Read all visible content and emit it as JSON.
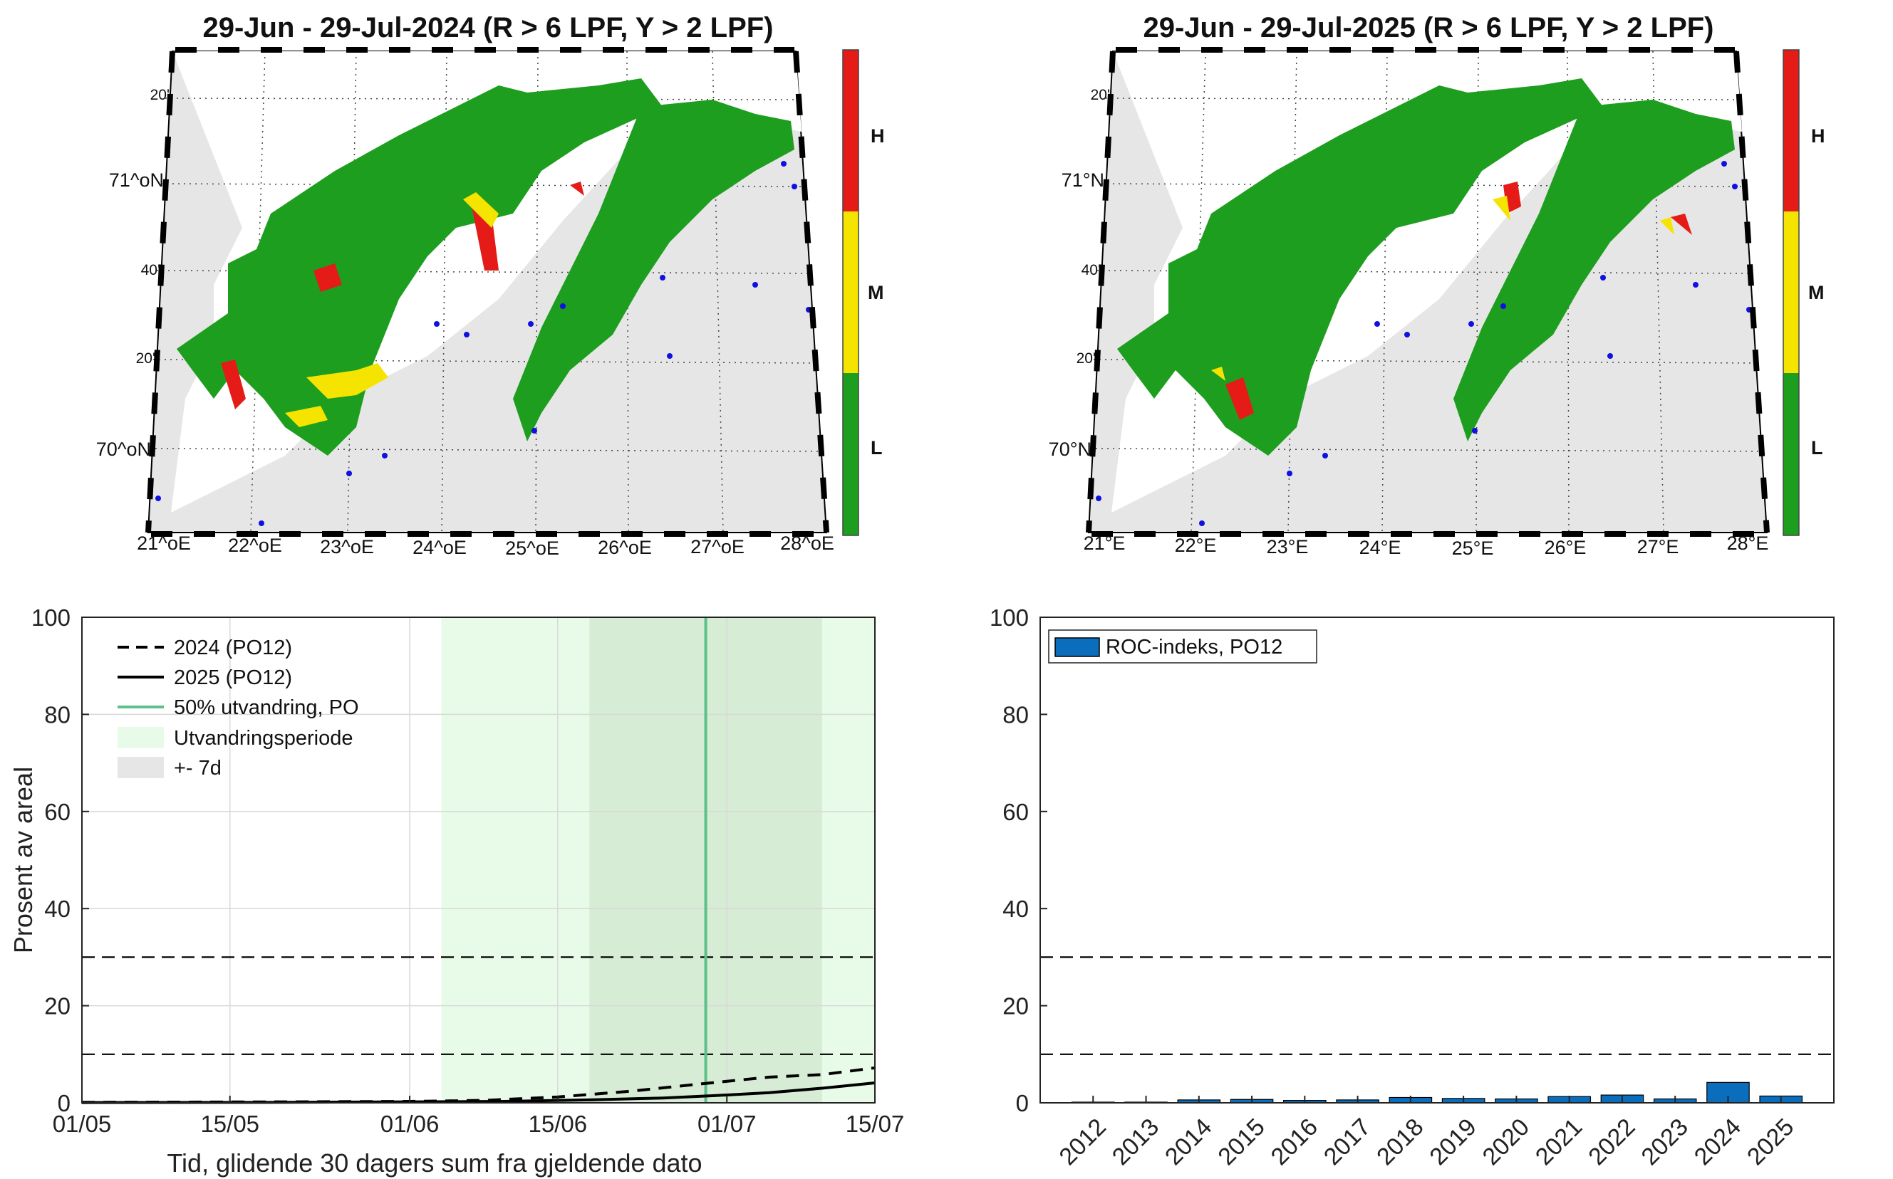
{
  "colors": {
    "land": "#e6e6e6",
    "sea_low": "#1e9e1e",
    "medium": "#f5e400",
    "high": "#e41b17",
    "station": "#1010e0",
    "outmigration": "#e8fbe8",
    "window": "#d6ecd4",
    "line50": "#5cc08a",
    "bar": "#0a6ebd"
  },
  "maps": [
    {
      "title": "29-Jun - 29-Jul-2024  (R > 6 LPF, Y > 2 LPF)",
      "lat_labels": [
        "20'",
        "71^oN",
        "40'",
        "20'",
        "70^oN"
      ],
      "lon_labels": [
        "21^oE",
        "22^oE",
        "23^oE",
        "24^oE",
        "25^oE",
        "26^oE",
        "27^oE",
        "28^oE"
      ],
      "colorbar": [
        "H",
        "M",
        "L"
      ]
    },
    {
      "title": "29-Jun - 29-Jul-2025  (R > 6 LPF, Y > 2 LPF)",
      "lat_labels": [
        "20'",
        "71°N",
        "40'",
        "20'",
        "70°N"
      ],
      "lon_labels": [
        "21°E",
        "22°E",
        "23°E",
        "24°E",
        "25°E",
        "26°E",
        "27°E",
        "28°E"
      ],
      "colorbar": [
        "H",
        "M",
        "L"
      ]
    }
  ],
  "chart_data": [
    {
      "type": "line",
      "title": "",
      "xlabel": "Tid, glidende 30 dagers sum fra gjeldende dato",
      "ylabel": "Prosent av areal",
      "x_ticks": [
        "01/05",
        "15/05",
        "01/06",
        "15/06",
        "01/07",
        "15/07"
      ],
      "x_tick_days": [
        0,
        14,
        31,
        45,
        61,
        75
      ],
      "y_ticks": [
        "0",
        "20",
        "40",
        "60",
        "80",
        "100"
      ],
      "xlim_days": [
        0,
        75
      ],
      "ylim": [
        0,
        100
      ],
      "grid": true,
      "thresholds": [
        10,
        30
      ],
      "outmigration_period_days": [
        34,
        75
      ],
      "window_days": [
        48,
        70
      ],
      "line50_day": 59,
      "series": [
        {
          "name": "2024 (PO12)",
          "style": "dashed",
          "x": [
            0,
            20,
            31,
            38,
            45,
            52,
            59,
            65,
            70,
            75
          ],
          "y": [
            0.1,
            0.2,
            0.3,
            0.5,
            1.2,
            2.4,
            4.0,
            5.3,
            5.8,
            7.2
          ]
        },
        {
          "name": "2025 (PO12)",
          "style": "solid",
          "x": [
            0,
            20,
            31,
            40,
            48,
            55,
            60,
            65,
            70,
            75
          ],
          "y": [
            0.05,
            0.1,
            0.2,
            0.3,
            0.6,
            1.0,
            1.5,
            2.1,
            3.0,
            4.1
          ]
        }
      ],
      "legend": [
        "2024 (PO12)",
        "2025 (PO12)",
        "50% utvandring, PO",
        "Utvandringsperiode",
        "+- 7d"
      ]
    },
    {
      "type": "bar",
      "title": "",
      "legend": [
        "ROC-indeks, PO12"
      ],
      "categories": [
        "2012",
        "2013",
        "2014",
        "2015",
        "2016",
        "2017",
        "2018",
        "2019",
        "2020",
        "2021",
        "2022",
        "2023",
        "2024",
        "2025"
      ],
      "values": [
        0.1,
        0.1,
        0.6,
        0.7,
        0.5,
        0.6,
        1.1,
        0.9,
        0.8,
        1.3,
        1.6,
        0.8,
        4.2,
        1.4
      ],
      "y_ticks": [
        "0",
        "20",
        "40",
        "60",
        "80",
        "100"
      ],
      "ylim": [
        0,
        100
      ],
      "thresholds": [
        10,
        30
      ]
    }
  ]
}
